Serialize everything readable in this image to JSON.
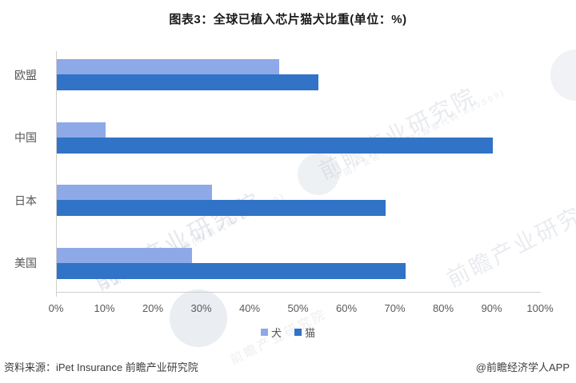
{
  "chart": {
    "title": "图表3：全球已植入芯片猫犬比重(单位：%)"
  },
  "chart_data": {
    "type": "bar",
    "orientation": "horizontal",
    "title": "图表3：全球已植入芯片猫犬比重(单位：%)",
    "categories": [
      "欧盟",
      "中国",
      "日本",
      "美国"
    ],
    "series": [
      {
        "name": "犬",
        "color": "#8EA9E8",
        "values": [
          46,
          10,
          32,
          28
        ]
      },
      {
        "name": "猫",
        "color": "#3173C6",
        "values": [
          54,
          90,
          68,
          72
        ]
      }
    ],
    "xlabel": "",
    "ylabel": "",
    "x_axis": {
      "min": 0,
      "max": 100,
      "tick_step": 10,
      "ticks": [
        "0%",
        "10%",
        "20%",
        "30%",
        "40%",
        "50%",
        "60%",
        "70%",
        "80%",
        "90%",
        "100%"
      ]
    },
    "grid": false,
    "legend_position": "bottom"
  },
  "footer": {
    "source": "资料来源：iPet Insurance 前瞻产业研究院",
    "credit": "@前瞻经济学人APP"
  },
  "watermark": {
    "text": "前瞻产业研究院",
    "subtext": "中国产业咨询领导者(股票代码:839599)"
  }
}
